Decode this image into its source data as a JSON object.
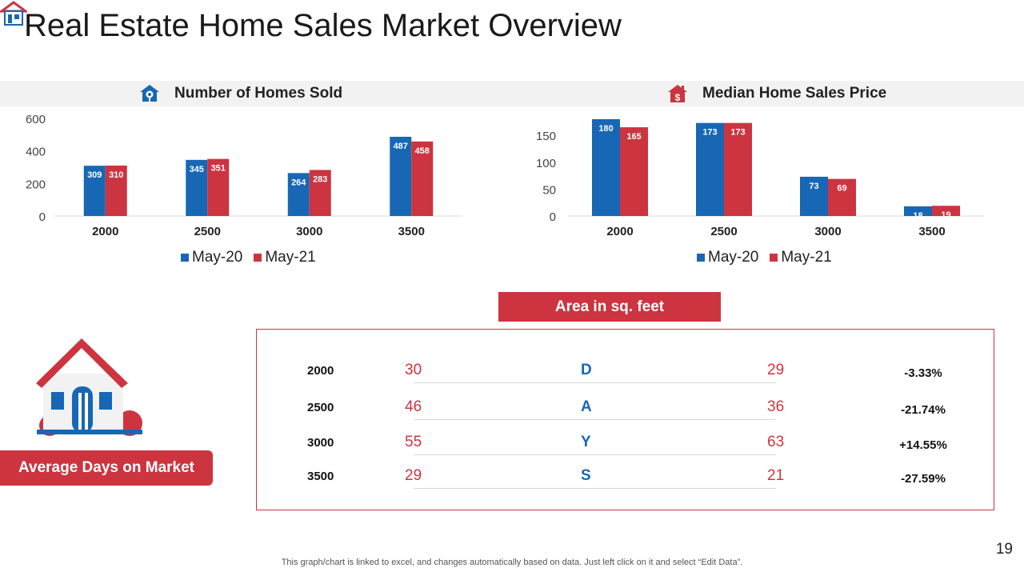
{
  "slide": {
    "title": "Real Estate Home Sales Market Overview",
    "page_number": "19",
    "footnote": "This graph/chart is linked to excel, and changes automatically based on data. Just left click on it and select “Edit Data”."
  },
  "colors": {
    "may20": "#1767b5",
    "may21": "#cc3440",
    "band": "#f2f2f2",
    "text": "#222222"
  },
  "icons": {
    "logo": "house-logo-icon",
    "homes_sold": "house-location-icon",
    "median_price": "house-dollar-icon",
    "illustration": "house-illustration-icon"
  },
  "chart_data": [
    {
      "type": "bar",
      "title": "Number of Homes Sold",
      "categories": [
        "2000",
        "2500",
        "3000",
        "3500"
      ],
      "series": [
        {
          "name": "May-20",
          "values": [
            309,
            345,
            264,
            487
          ]
        },
        {
          "name": "May-21",
          "values": [
            310,
            351,
            283,
            458
          ]
        }
      ],
      "ylim": [
        0,
        600
      ],
      "yticks": [
        0,
        200,
        400,
        600
      ],
      "grid": false,
      "legend": "bottom",
      "data_labels": true
    },
    {
      "type": "bar",
      "title": "Median Home Sales Price",
      "categories": [
        "2000",
        "2500",
        "3000",
        "3500"
      ],
      "series": [
        {
          "name": "May-20",
          "values": [
            180,
            173,
            73,
            18
          ]
        },
        {
          "name": "May-21",
          "values": [
            165,
            173,
            69,
            19
          ]
        }
      ],
      "ylim": [
        0,
        180
      ],
      "yticks": [
        0,
        50,
        100,
        150
      ],
      "grid": false,
      "legend": "bottom",
      "data_labels": true
    }
  ],
  "area_table": {
    "header": "Area in sq. feet",
    "rows": [
      {
        "category": "2000",
        "may20": "30",
        "letter": "D",
        "may21": "29",
        "change": "-3.33%"
      },
      {
        "category": "2500",
        "may20": "46",
        "letter": "A",
        "may21": "36",
        "change": "-21.74%"
      },
      {
        "category": "3000",
        "may20": "55",
        "letter": "Y",
        "may21": "63",
        "change": "+14.55%"
      },
      {
        "category": "3500",
        "may20": "29",
        "letter": "S",
        "may21": "21",
        "change": "-27.59%"
      }
    ]
  },
  "days_on_market": {
    "label": "Average Days on Market"
  }
}
